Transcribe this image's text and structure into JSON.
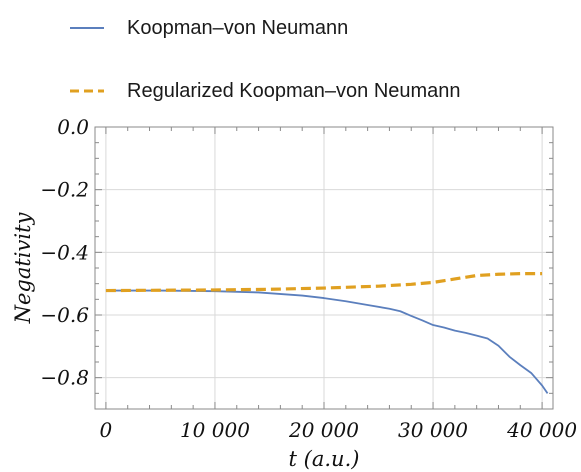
{
  "chart_data": {
    "type": "line",
    "xlabel": "t (a.u.)",
    "ylabel": "Negativity",
    "xlim": [
      -1000,
      41000
    ],
    "ylim": [
      -0.9,
      0.0
    ],
    "x_ticks": [
      0,
      10000,
      20000,
      30000,
      40000
    ],
    "x_tick_labels": [
      "0",
      "10 000",
      "20 000",
      "30 000",
      "40 000"
    ],
    "y_ticks": [
      0.0,
      -0.2,
      -0.4,
      -0.6,
      -0.8
    ],
    "y_tick_labels": [
      "0.0",
      "−0.2",
      "−0.4",
      "−0.6",
      "−0.8"
    ],
    "grid": true,
    "legend_position": "top-left, above plot",
    "series": [
      {
        "name": "Koopman–von Neumann",
        "color": "#5b7fbd",
        "style": "solid",
        "x": [
          0,
          5000,
          10000,
          14000,
          18000,
          20000,
          22000,
          24000,
          26000,
          27000,
          28000,
          29000,
          30000,
          31000,
          32000,
          33000,
          34000,
          35000,
          36000,
          37000,
          38000,
          39000,
          40000,
          40500
        ],
        "y": [
          -0.522,
          -0.522,
          -0.524,
          -0.528,
          -0.538,
          -0.546,
          -0.556,
          -0.568,
          -0.58,
          -0.588,
          -0.603,
          -0.617,
          -0.632,
          -0.64,
          -0.65,
          -0.657,
          -0.666,
          -0.675,
          -0.698,
          -0.733,
          -0.76,
          -0.785,
          -0.825,
          -0.85
        ]
      },
      {
        "name": "Regularized Koopman–von Neumann",
        "color": "#e0a020",
        "style": "dashed",
        "x": [
          0,
          5000,
          10000,
          15000,
          20000,
          25000,
          28000,
          30000,
          32000,
          34000,
          36000,
          38000,
          40000
        ],
        "y": [
          -0.522,
          -0.521,
          -0.52,
          -0.518,
          -0.514,
          -0.508,
          -0.502,
          -0.496,
          -0.485,
          -0.474,
          -0.47,
          -0.468,
          -0.468
        ]
      }
    ]
  }
}
